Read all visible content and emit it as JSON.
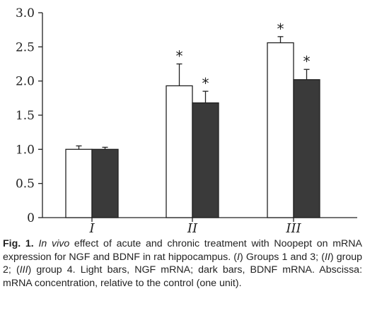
{
  "chart_data": {
    "type": "bar",
    "categories": [
      "I",
      "II",
      "III"
    ],
    "series": [
      {
        "values": [
          1.0,
          1.93,
          2.56
        ],
        "errors": [
          0.05,
          0.32,
          0.09
        ],
        "color": "#ffffff"
      },
      {
        "values": [
          1.0,
          1.68,
          2.02
        ],
        "errors": [
          0.03,
          0.17,
          0.15
        ],
        "color": "#3a3a3a"
      }
    ],
    "significance": [
      [
        false,
        true,
        true
      ],
      [
        false,
        true,
        true
      ]
    ],
    "significance_marker": "*",
    "ylim": [
      0,
      3.0
    ],
    "yticks": [
      "0",
      "0.5",
      "1.0",
      "1.5",
      "2.0",
      "2.5",
      "3.0"
    ],
    "grid": false,
    "legend": "none"
  },
  "caption": {
    "fig_label": "Fig. 1.",
    "s1": "In vivo",
    "s2": " effect of acute and chronic treatment with Noopept on mRNA expression for NGF and BDNF in rat hippocampus. (",
    "s3": "I",
    "s4": ") Groups 1 and 3; (",
    "s5": "II",
    "s6": ") group 2; (",
    "s7": "III",
    "s8": ") group 4. Light bars, NGF mRNA; dark bars, BDNF mRNA. Abscissa: mRNA concentration, relative to the control (one unit)."
  }
}
